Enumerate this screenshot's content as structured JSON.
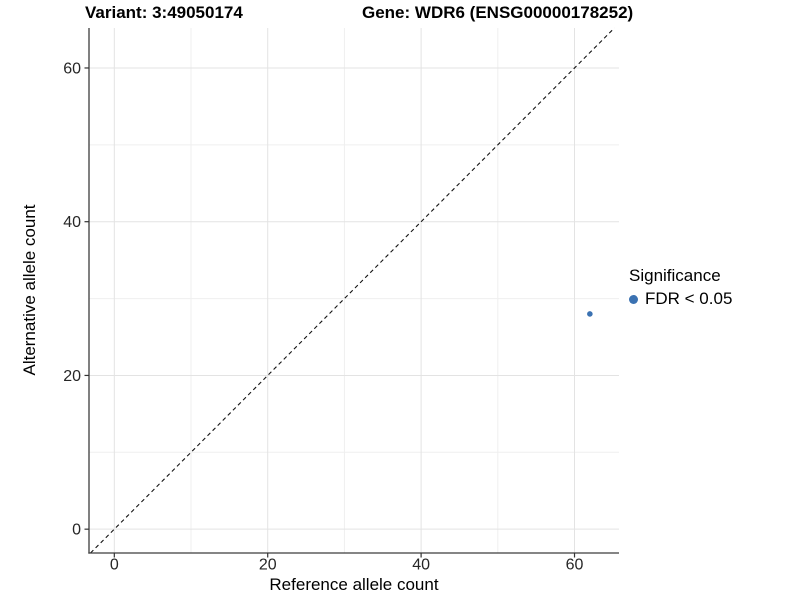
{
  "header": {
    "variant_title": "Variant: 3:49050174",
    "gene_title": "Gene: WDR6 (ENSG00000178252)"
  },
  "chart_data": {
    "type": "scatter",
    "title": "Variant: 3:49050174   Gene: WDR6 (ENSG00000178252)",
    "xlabel": "Reference allele count",
    "ylabel": "Alternative allele count",
    "xlim": [
      -3.3,
      65.8
    ],
    "ylim": [
      -3.1,
      65.2
    ],
    "x_major_ticks": [
      0,
      20,
      40,
      60
    ],
    "x_minor_ticks": [
      10,
      30,
      50
    ],
    "y_major_ticks": [
      0,
      20,
      40,
      60
    ],
    "y_minor_ticks": [
      10,
      30,
      50
    ],
    "grid": "major+minor",
    "legend_position": "right",
    "points": [
      {
        "x": 62,
        "y": 28,
        "series": "FDR < 0.05"
      }
    ],
    "reference_line": {
      "kind": "abline",
      "slope": 1,
      "intercept": 0,
      "style": "dashed"
    }
  },
  "legend": {
    "title": "Significance",
    "items": [
      {
        "label": "FDR < 0.05",
        "marker": "circle",
        "color": "#3B72B2"
      }
    ]
  },
  "colors": {
    "point": "#3B72B2",
    "grid_major": "#E3E3E3",
    "grid_minor": "#EFEFEF",
    "axis_line": "#3C3C3C",
    "tick_mark": "#333333",
    "reference_line": "#141414",
    "text": "#000000"
  }
}
